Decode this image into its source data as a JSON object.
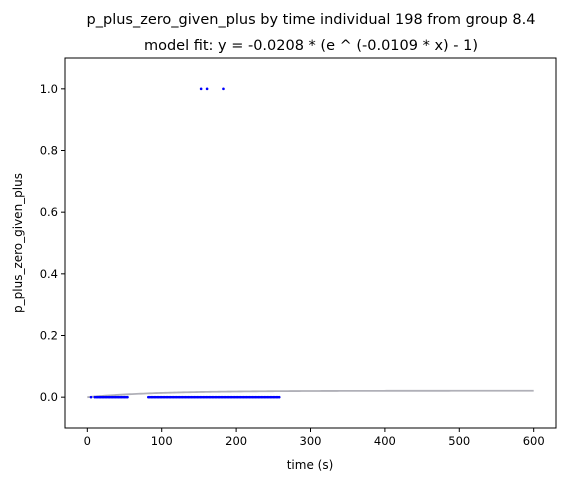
{
  "chart_data": {
    "type": "scatter",
    "title": "p_plus_zero_given_plus by time individual 198 from group 8.4",
    "subtitle": "model fit: y = -0.0208 * (e ^ (-0.0109 * x) - 1)",
    "xlabel": "time (s)",
    "ylabel": "p_plus_zero_given_plus",
    "xlim": [
      -30,
      630
    ],
    "ylim": [
      -0.1,
      1.1
    ],
    "xticks": [
      0,
      100,
      200,
      300,
      400,
      500,
      600
    ],
    "yticks": [
      0.0,
      0.2,
      0.4,
      0.6,
      0.8,
      1.0
    ],
    "xtick_labels": [
      "0",
      "100",
      "200",
      "300",
      "400",
      "500",
      "600"
    ],
    "ytick_labels": [
      "0.0",
      "0.2",
      "0.4",
      "0.6",
      "0.8",
      "1.0"
    ],
    "grid": false,
    "legend": "none",
    "points_color": "#0000ff",
    "fit_color": "#b0b0b8",
    "points": {
      "x": [
        5,
        10,
        12,
        14,
        16,
        18,
        20,
        22,
        24,
        26,
        28,
        30,
        32,
        34,
        36,
        38,
        40,
        42,
        44,
        46,
        48,
        50,
        52,
        54,
        82,
        84,
        86,
        88,
        90,
        92,
        94,
        96,
        98,
        100,
        102,
        104,
        106,
        108,
        110,
        112,
        114,
        116,
        118,
        120,
        122,
        124,
        126,
        128,
        130,
        132,
        134,
        136,
        138,
        140,
        142,
        144,
        146,
        148,
        150,
        152,
        154,
        156,
        158,
        160,
        162,
        164,
        166,
        168,
        170,
        172,
        174,
        176,
        178,
        180,
        182,
        184,
        186,
        188,
        190,
        192,
        194,
        196,
        198,
        200,
        202,
        204,
        206,
        208,
        210,
        212,
        214,
        216,
        218,
        220,
        222,
        224,
        226,
        228,
        230,
        232,
        234,
        236,
        238,
        240,
        242,
        244,
        246,
        248,
        250,
        252,
        254,
        256,
        258,
        153,
        161,
        183
      ],
      "y": [
        0,
        0,
        0,
        0,
        0,
        0,
        0,
        0,
        0,
        0,
        0,
        0,
        0,
        0,
        0,
        0,
        0,
        0,
        0,
        0,
        0,
        0,
        0,
        0,
        0,
        0,
        0,
        0,
        0,
        0,
        0,
        0,
        0,
        0,
        0,
        0,
        0,
        0,
        0,
        0,
        0,
        0,
        0,
        0,
        0,
        0,
        0,
        0,
        0,
        0,
        0,
        0,
        0,
        0,
        0,
        0,
        0,
        0,
        0,
        0,
        0,
        0,
        0,
        0,
        0,
        0,
        0,
        0,
        0,
        0,
        0,
        0,
        0,
        0,
        0,
        0,
        0,
        0,
        0,
        0,
        0,
        0,
        0,
        0,
        0,
        0,
        0,
        0,
        0,
        0,
        0,
        0,
        0,
        0,
        0,
        0,
        0,
        0,
        0,
        0,
        0,
        0,
        0,
        0,
        0,
        0,
        0,
        0,
        0,
        0,
        0,
        0,
        0,
        1,
        1,
        1
      ]
    },
    "fit": {
      "a": -0.0208,
      "b": -0.0109,
      "x_range": [
        0,
        600
      ]
    }
  }
}
